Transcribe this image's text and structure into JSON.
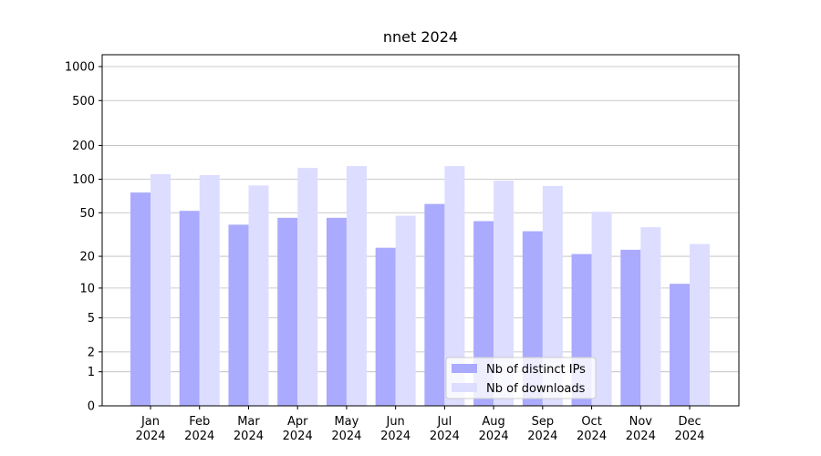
{
  "chart_data": {
    "type": "bar",
    "title": "nnet 2024",
    "categories": [
      "Jan 2024",
      "Feb 2024",
      "Mar 2024",
      "Apr 2024",
      "May 2024",
      "Jun 2024",
      "Jul 2024",
      "Aug 2024",
      "Sep 2024",
      "Oct 2024",
      "Nov 2024",
      "Dec 2024"
    ],
    "series": [
      {
        "name": "Nb of distinct IPs",
        "color": "#aaaaff",
        "values": [
          76,
          52,
          39,
          45,
          45,
          24,
          60,
          42,
          34,
          21,
          23,
          11
        ]
      },
      {
        "name": "Nb of downloads",
        "color": "#ddddff",
        "values": [
          111,
          109,
          88,
          126,
          131,
          47,
          131,
          97,
          87,
          51,
          37,
          26
        ]
      }
    ],
    "yscale": "log1p",
    "ylim": [
      0,
      1273
    ],
    "yticks": [
      0,
      1,
      2,
      5,
      10,
      20,
      50,
      100,
      200,
      500,
      1000
    ],
    "grid": true,
    "legend": "lower center"
  }
}
